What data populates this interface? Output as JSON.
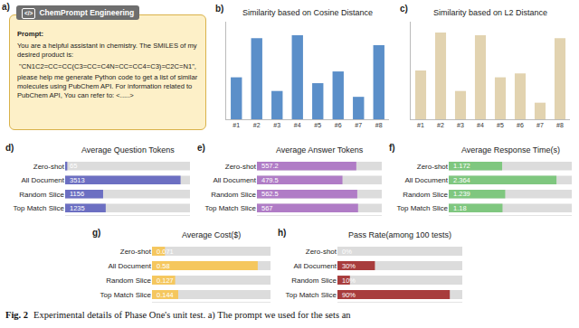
{
  "panel_a": {
    "label": "a)",
    "icon": "</>",
    "header": "ChemPrompt Engineering",
    "prompt_title": "Prompt:",
    "lines": [
      "You are a helpful assistant in chemistry. The SMILES of my desired product is:",
      "\"CN1C2=CC=CC(C3=CC=C4N=CC=CC4=C3)=C2C=N1\",",
      "please help me generate Python code to get a list of similar molecules using PubChem API. For information related to PubChem API, You can refer to: <.....>"
    ]
  },
  "caption": {
    "label": "Fig. 2",
    "text": "Experimental details of Phase One's unit test. a) The prompt we used for the sets an"
  },
  "chart_data": [
    {
      "type": "bar",
      "title": "Similarity based on Cosine Distance",
      "annotations": [
        "b)"
      ],
      "categories": [
        "#1",
        "#2",
        "#3",
        "#4",
        "#5",
        "#6",
        "#7",
        "#8"
      ],
      "values": [
        0.43,
        0.83,
        0.29,
        0.86,
        0.37,
        0.49,
        0.23,
        0.76
      ],
      "color": "#5b8fc9",
      "ylim": [
        0,
        1
      ],
      "tick_labels": "x"
    },
    {
      "type": "bar",
      "title": "Similarity based on L2 Distance",
      "annotations": [
        "c)"
      ],
      "categories": [
        "#1",
        "#2",
        "#3",
        "#4",
        "#5",
        "#6",
        "#7",
        "#8"
      ],
      "values": [
        0.5,
        0.89,
        0.29,
        0.86,
        0.43,
        0.47,
        0.17,
        0.83
      ],
      "color": "#e2d3b0",
      "ylim": [
        0,
        1
      ],
      "tick_labels": "x"
    },
    {
      "type": "bar",
      "orientation": "horizontal",
      "title": "Average Question Tokens",
      "annotations": [
        "d)"
      ],
      "categories": [
        "Zero-shot",
        "All Document",
        "Random Slice",
        "Top Match Slice"
      ],
      "values": [
        65,
        3513,
        1156,
        1235
      ],
      "color": "#6c6fc2",
      "xlim": [
        0,
        3800
      ],
      "tick_labels": "y",
      "data_labels": true
    },
    {
      "type": "bar",
      "orientation": "horizontal",
      "title": "Average Answer Tokens",
      "annotations": [
        "e)"
      ],
      "categories": [
        "Zero-shot",
        "All Document",
        "Random Slice",
        "Top Match Slice"
      ],
      "values": [
        557.2,
        479.5,
        562.5,
        567
      ],
      "color": "#b07cc6",
      "xlim": [
        0,
        700
      ],
      "tick_labels": "y",
      "data_labels": true
    },
    {
      "type": "bar",
      "orientation": "horizontal",
      "title": "Average Response Time(s)",
      "annotations": [
        "f)"
      ],
      "categories": [
        "Zero-shot",
        "All Document",
        "Random Slice",
        "Top Match Slice"
      ],
      "values": [
        1.172,
        2.364,
        1.239,
        1.18
      ],
      "color": "#7fc77f",
      "xlim": [
        0,
        2.7
      ],
      "tick_labels": "y",
      "data_labels": true
    },
    {
      "type": "bar",
      "orientation": "horizontal",
      "title": "Average Cost($)",
      "annotations": [
        "g)"
      ],
      "categories": [
        "Zero-shot",
        "All Document",
        "Random Slice",
        "Top Match Slice"
      ],
      "values": [
        0.071,
        0.58,
        0.127,
        0.144
      ],
      "color": "#f5c75e",
      "xlim": [
        0,
        0.65
      ],
      "tick_labels": "y",
      "data_labels": true
    },
    {
      "type": "bar",
      "orientation": "horizontal",
      "title": "Pass Rate(among 100 tests)",
      "annotations": [
        "h)"
      ],
      "categories": [
        "Zero-shot",
        "All Document",
        "Random Slice",
        "Top Match Slice"
      ],
      "values": [
        0,
        30,
        10,
        90
      ],
      "value_labels": [
        "0%",
        "30%",
        "10%",
        "90%"
      ],
      "color": "#a83c3c",
      "xlim": [
        0,
        100
      ],
      "tick_labels": "y",
      "data_labels": true
    }
  ]
}
